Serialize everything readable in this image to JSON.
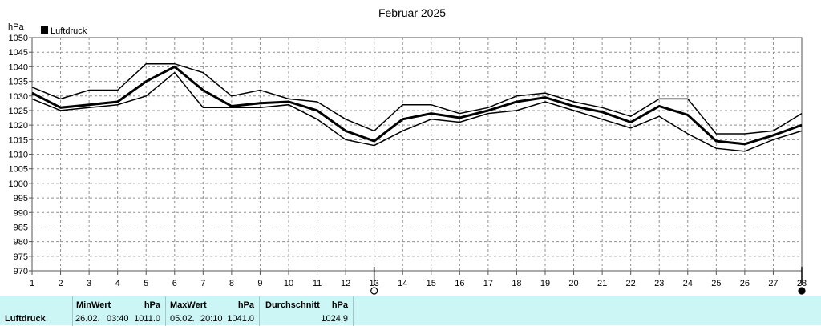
{
  "chart_data": {
    "type": "line",
    "title": "Februar 2025",
    "ylabel": "hPa",
    "ylim": [
      970,
      1050
    ],
    "yticks": [
      970,
      975,
      980,
      985,
      990,
      995,
      1000,
      1005,
      1010,
      1015,
      1020,
      1025,
      1030,
      1035,
      1040,
      1045,
      1050
    ],
    "x": [
      1,
      2,
      3,
      4,
      5,
      6,
      7,
      8,
      9,
      10,
      11,
      12,
      13,
      14,
      15,
      16,
      17,
      18,
      19,
      20,
      21,
      22,
      23,
      24,
      25,
      26,
      27,
      28
    ],
    "grid": true,
    "legend": {
      "position": "top-left",
      "label": "Luftdruck",
      "color": "#000000"
    },
    "series": [
      {
        "values": [
          1033,
          1029,
          1032,
          1032,
          1041,
          1041,
          1038,
          1030,
          1032,
          1029,
          1028,
          1022,
          1018,
          1027,
          1027,
          1024,
          1026,
          1030,
          1031,
          1028,
          1026,
          1023,
          1029,
          1029,
          1017,
          1017,
          1018,
          1024
        ],
        "width": 1.5
      },
      {
        "values": [
          1031,
          1026,
          1027,
          1028,
          1035,
          1040,
          1032,
          1026.5,
          1027.5,
          1028,
          1025,
          1018,
          1014.5,
          1022,
          1024,
          1022.5,
          1025,
          1028,
          1029.5,
          1026.5,
          1024.5,
          1021,
          1026.5,
          1023.5,
          1014.5,
          1013.5,
          1016.5,
          1020
        ],
        "width": 3
      },
      {
        "values": [
          1029,
          1025,
          1026,
          1027,
          1030,
          1038,
          1026,
          1026,
          1026,
          1027,
          1022,
          1015,
          1013,
          1018,
          1022,
          1021,
          1024,
          1025,
          1028,
          1025,
          1022,
          1019,
          1023,
          1017,
          1012,
          1011,
          1015,
          1018
        ],
        "width": 1.5
      }
    ],
    "markers": [
      {
        "x": 13,
        "symbol": "open-circle"
      },
      {
        "x": 28,
        "symbol": "filled-circle"
      }
    ]
  },
  "footer": {
    "name": "Luftdruck",
    "min": {
      "label": "MinWert",
      "unit": "hPa",
      "date": "26.02.",
      "time": "03:40",
      "value": "1011.0"
    },
    "max": {
      "label": "MaxWert",
      "unit": "hPa",
      "date": "05.02.",
      "time": "20:10",
      "value": "1041.0"
    },
    "avg": {
      "label": "Durchschnitt",
      "unit": "hPa",
      "value": "1024.9"
    }
  }
}
